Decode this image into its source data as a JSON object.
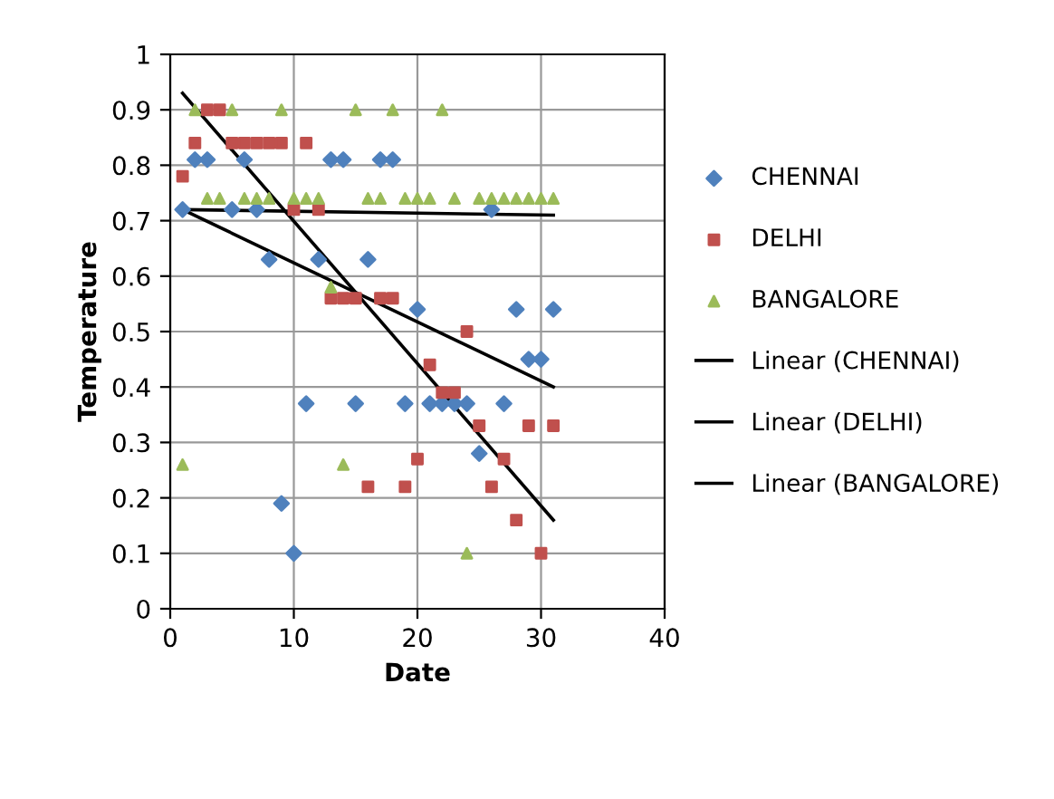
{
  "chart_data": {
    "type": "scatter",
    "xlabel": "Date",
    "ylabel": "Temperature",
    "xlim": [
      0,
      40
    ],
    "ylim": [
      0,
      1
    ],
    "xticks": [
      0,
      10,
      20,
      30,
      40
    ],
    "yticks": [
      0,
      0.1,
      0.2,
      0.3,
      0.4,
      0.5,
      0.6,
      0.7,
      0.8,
      0.9,
      1
    ],
    "grid": true,
    "legend": "right",
    "x": [
      1,
      2,
      3,
      4,
      5,
      6,
      7,
      8,
      9,
      10,
      11,
      12,
      13,
      14,
      15,
      16,
      17,
      18,
      19,
      20,
      21,
      22,
      23,
      24,
      25,
      26,
      27,
      28,
      29,
      30,
      31
    ],
    "series": [
      {
        "name": "CHENNAI",
        "color": "#4f81bd",
        "marker": "diamond",
        "values": [
          0.72,
          0.81,
          0.81,
          null,
          0.72,
          0.81,
          0.72,
          0.63,
          0.19,
          0.1,
          0.37,
          0.63,
          0.81,
          0.81,
          0.37,
          0.63,
          0.81,
          0.81,
          0.37,
          0.54,
          0.37,
          0.37,
          0.37,
          0.37,
          0.28,
          0.72,
          0.37,
          0.54,
          0.45,
          0.45,
          0.54
        ]
      },
      {
        "name": "DELHI",
        "color": "#c0504d",
        "marker": "square",
        "values": [
          0.78,
          0.84,
          0.9,
          0.9,
          0.84,
          0.84,
          0.84,
          0.84,
          0.84,
          0.72,
          0.84,
          0.72,
          0.56,
          0.56,
          0.56,
          0.22,
          0.56,
          0.56,
          0.22,
          0.27,
          0.44,
          0.39,
          0.39,
          0.5,
          0.33,
          0.22,
          0.27,
          0.16,
          0.33,
          0.1,
          0.33
        ]
      },
      {
        "name": "BANGALORE",
        "color": "#9bbb59",
        "marker": "triangle",
        "values": [
          0.26,
          0.9,
          0.74,
          0.74,
          0.9,
          0.74,
          0.74,
          0.74,
          0.9,
          0.74,
          0.74,
          0.74,
          0.58,
          0.26,
          0.9,
          0.74,
          0.74,
          0.9,
          0.74,
          0.74,
          0.74,
          0.9,
          0.74,
          0.1,
          0.74,
          0.74,
          0.74,
          0.74,
          0.74,
          0.74,
          0.74
        ]
      },
      {
        "name": "Linear (CHENNAI)",
        "type": "line",
        "color": "#000000",
        "marker": "none",
        "values": [
          0.72,
          null,
          null,
          null,
          null,
          null,
          null,
          null,
          null,
          null,
          null,
          null,
          null,
          null,
          null,
          null,
          null,
          null,
          null,
          null,
          null,
          null,
          null,
          null,
          null,
          null,
          null,
          null,
          null,
          null,
          0.4
        ]
      },
      {
        "name": "Linear (DELHI)",
        "type": "line",
        "color": "#000000",
        "marker": "none",
        "values": [
          0.93,
          null,
          null,
          null,
          null,
          null,
          null,
          null,
          null,
          null,
          null,
          null,
          null,
          null,
          null,
          null,
          null,
          null,
          null,
          null,
          null,
          null,
          null,
          null,
          null,
          null,
          null,
          null,
          null,
          null,
          0.16
        ]
      },
      {
        "name": "Linear (BANGALORE)",
        "type": "line",
        "color": "#000000",
        "marker": "none",
        "values": [
          0.72,
          null,
          null,
          null,
          null,
          null,
          null,
          null,
          null,
          null,
          null,
          null,
          null,
          null,
          null,
          null,
          null,
          null,
          null,
          null,
          null,
          null,
          null,
          null,
          null,
          null,
          null,
          null,
          null,
          null,
          0.71
        ]
      }
    ]
  }
}
